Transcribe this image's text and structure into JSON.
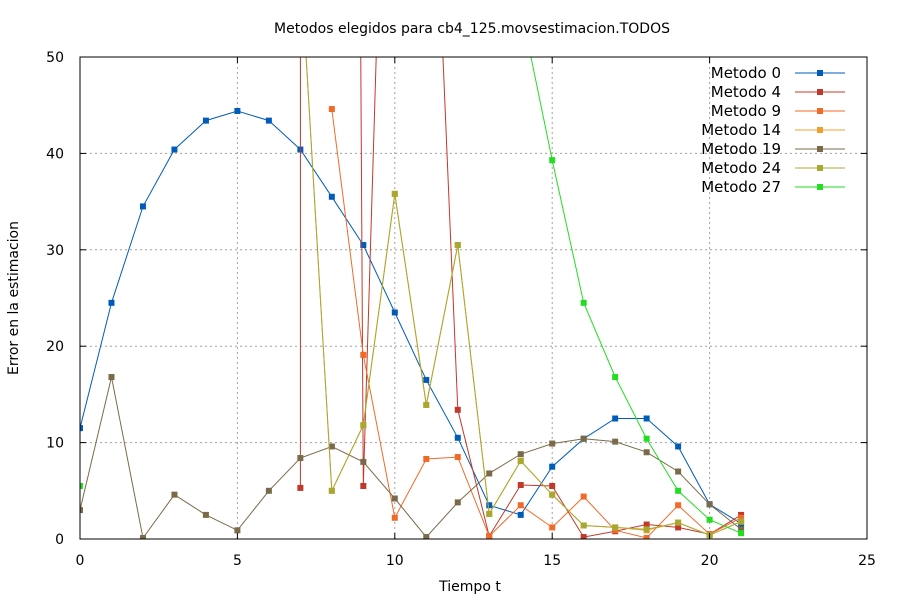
{
  "chart_data": {
    "type": "line",
    "title": "Metodos elegidos para cb4_125.movsestimacion.TODOS",
    "xlabel": "Tiempo t",
    "ylabel": "Error en la estimacion",
    "xlim": [
      0,
      25
    ],
    "ylim": [
      0,
      50
    ],
    "xticks": [
      "0",
      "5",
      "10",
      "15",
      "20",
      "25"
    ],
    "yticks": [
      "0",
      "10",
      "20",
      "30",
      "40",
      "50"
    ],
    "grid": true,
    "legend_position": "top-right",
    "series": [
      {
        "name": "Metodo 0",
        "color": "#005cb8",
        "points": [
          [
            0,
            11.5
          ],
          [
            1,
            24.5
          ],
          [
            2,
            34.5
          ],
          [
            3,
            40.4
          ],
          [
            4,
            43.4
          ],
          [
            5,
            44.4
          ],
          [
            6,
            43.4
          ],
          [
            7,
            40.4
          ],
          [
            8,
            35.5
          ],
          [
            9,
            30.5
          ],
          [
            10,
            23.5
          ],
          [
            11,
            16.5
          ],
          [
            12,
            10.5
          ],
          [
            13,
            3.5
          ],
          [
            14,
            2.5
          ],
          [
            15,
            7.5
          ],
          [
            16,
            10.4
          ],
          [
            17,
            12.5
          ],
          [
            18,
            12.5
          ],
          [
            19,
            9.6
          ],
          [
            20,
            3.6
          ],
          [
            21,
            1.6
          ]
        ]
      },
      {
        "name": "Metodo 4",
        "color": "#c0392b",
        "points": [
          [
            7,
            5.3
          ],
          [
            7,
            60
          ],
          [
            8.9,
            60
          ],
          [
            9,
            5.5
          ],
          [
            9.5,
            60
          ],
          [
            11.4,
            60
          ],
          [
            12,
            13.4
          ],
          [
            13,
            0.3
          ],
          [
            14,
            5.6
          ],
          [
            15,
            5.5
          ],
          [
            16,
            0.2
          ],
          [
            17,
            0.8
          ],
          [
            18,
            1.5
          ],
          [
            19,
            1.2
          ],
          [
            20,
            0.5
          ],
          [
            21,
            2.5
          ]
        ]
      },
      {
        "name": "Metodo 9",
        "color": "#f06a2a",
        "points": [
          [
            8,
            44.6
          ],
          [
            9,
            19.1
          ],
          [
            10,
            2.2
          ],
          [
            11,
            8.3
          ],
          [
            12,
            8.5
          ],
          [
            13,
            0.3
          ],
          [
            14,
            3.5
          ],
          [
            15,
            1.2
          ],
          [
            16,
            4.4
          ],
          [
            17,
            0.9
          ],
          [
            18,
            0.1
          ],
          [
            19,
            3.5
          ],
          [
            20,
            0.5
          ],
          [
            21,
            2.2
          ]
        ]
      },
      {
        "name": "Metodo 14",
        "color": "#f0a030",
        "points": [
          [
            7,
            60
          ],
          [
            8,
            5.0
          ],
          [
            9,
            11.8
          ],
          [
            10,
            35.8
          ],
          [
            11,
            13.9
          ],
          [
            12,
            30.5
          ],
          [
            13,
            2.6
          ],
          [
            14,
            8.1
          ],
          [
            15,
            4.6
          ],
          [
            16,
            1.4
          ],
          [
            17,
            1.2
          ],
          [
            18,
            0.9
          ],
          [
            19,
            1.7
          ],
          [
            20,
            0.4
          ],
          [
            21,
            1.8
          ]
        ]
      },
      {
        "name": "Metodo 19",
        "color": "#7a6a4a",
        "points": [
          [
            0,
            3.0
          ],
          [
            1,
            16.8
          ],
          [
            2,
            0.1
          ],
          [
            3,
            4.6
          ],
          [
            4,
            2.5
          ],
          [
            5,
            0.9
          ],
          [
            6,
            5.0
          ],
          [
            7,
            8.4
          ],
          [
            8,
            9.6
          ],
          [
            9,
            8.0
          ],
          [
            10,
            4.2
          ],
          [
            11,
            0.2
          ],
          [
            12,
            3.8
          ],
          [
            13,
            6.8
          ],
          [
            14,
            8.8
          ],
          [
            15,
            9.9
          ],
          [
            16,
            10.4
          ],
          [
            17,
            10.1
          ],
          [
            18,
            9.0
          ],
          [
            19,
            7.0
          ],
          [
            20,
            3.6
          ],
          [
            21,
            1.0
          ]
        ]
      },
      {
        "name": "Metodo 24",
        "color": "#a8a830",
        "points": [
          [
            7,
            60
          ],
          [
            8,
            5.0
          ],
          [
            9,
            11.8
          ],
          [
            10,
            35.8
          ],
          [
            11,
            13.9
          ],
          [
            12,
            30.5
          ],
          [
            13,
            2.6
          ],
          [
            14,
            8.1
          ],
          [
            15,
            4.6
          ],
          [
            16,
            1.4
          ],
          [
            17,
            1.2
          ],
          [
            18,
            1.0
          ],
          [
            19,
            1.7
          ],
          [
            20,
            0.4
          ],
          [
            21,
            1.8
          ]
        ]
      },
      {
        "name": "Metodo 27",
        "color": "#22dd22",
        "points": [
          [
            0,
            5.5
          ],
          [
            0,
            60
          ],
          [
            14.2,
            52
          ],
          [
            15,
            39.3
          ],
          [
            16,
            24.5
          ],
          [
            17,
            16.8
          ],
          [
            18,
            10.4
          ],
          [
            19,
            5.0
          ],
          [
            20,
            2.0
          ],
          [
            21,
            0.6
          ]
        ]
      }
    ]
  }
}
